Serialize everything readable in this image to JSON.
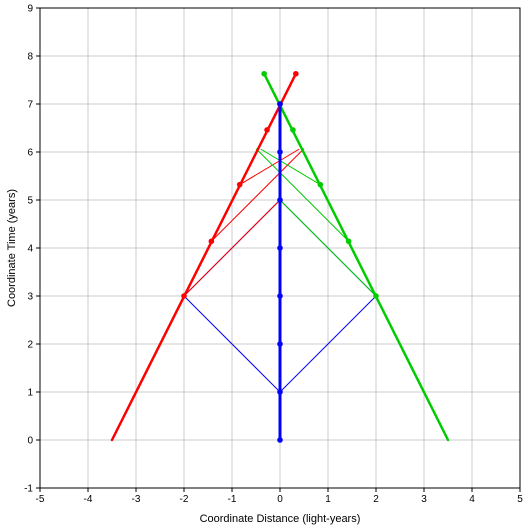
{
  "chart_data": {
    "type": "line",
    "title": "",
    "xlabel": "Coordinate Distance (light-years)",
    "ylabel": "Coordinate Time (years)",
    "xlim": [
      -5,
      5
    ],
    "ylim": [
      -1,
      9
    ],
    "xticks": [
      "-5",
      "-4",
      "-3",
      "-2",
      "-1",
      "0",
      "1",
      "2",
      "3",
      "4",
      "5"
    ],
    "yticks": [
      "-1",
      "0",
      "1",
      "2",
      "3",
      "4",
      "5",
      "6",
      "7",
      "8",
      "9"
    ],
    "grid": true,
    "legend": "none",
    "colors": {
      "red": "#ff0000",
      "green": "#00cc00",
      "blue": "#0000ff",
      "grid": "#cccccc",
      "axis": "#000000"
    },
    "worldlines": [
      {
        "color": "red",
        "width": 2.5,
        "points": [
          [
            -3.5,
            0
          ],
          [
            0.33,
            7.63
          ]
        ]
      },
      {
        "color": "green",
        "width": 2.5,
        "points": [
          [
            3.5,
            0
          ],
          [
            -0.33,
            7.63
          ]
        ]
      },
      {
        "color": "blue",
        "width": 3,
        "points": [
          [
            0,
            0
          ],
          [
            0,
            7
          ]
        ]
      }
    ],
    "signals": [
      {
        "color": "blue",
        "points": [
          [
            0,
            1
          ],
          [
            -2,
            3
          ],
          [
            0,
            5
          ]
        ]
      },
      {
        "color": "blue",
        "points": [
          [
            0,
            1
          ],
          [
            2,
            3
          ],
          [
            0,
            5
          ]
        ]
      },
      {
        "color": "red",
        "points": [
          [
            -2,
            3
          ],
          [
            0,
            5
          ]
        ]
      },
      {
        "color": "red",
        "points": [
          [
            -1.43,
            4.14
          ],
          [
            0.5,
            6.07
          ]
        ]
      },
      {
        "color": "red",
        "points": [
          [
            -0.84,
            5.32
          ],
          [
            0.4,
            6.06
          ]
        ]
      },
      {
        "color": "green",
        "points": [
          [
            2,
            3
          ],
          [
            0,
            5
          ]
        ]
      },
      {
        "color": "green",
        "points": [
          [
            1.43,
            4.14
          ],
          [
            -0.5,
            6.07
          ]
        ]
      },
      {
        "color": "green",
        "points": [
          [
            0.84,
            5.32
          ],
          [
            -0.4,
            6.06
          ]
        ]
      }
    ],
    "markers": [
      {
        "color": "red",
        "points": [
          [
            -2,
            3
          ],
          [
            -1.43,
            4.14
          ],
          [
            -0.84,
            5.32
          ],
          [
            -0.27,
            6.46
          ],
          [
            0,
            7
          ],
          [
            0.33,
            7.63
          ]
        ]
      },
      {
        "color": "green",
        "points": [
          [
            2,
            3
          ],
          [
            1.43,
            4.14
          ],
          [
            0.84,
            5.32
          ],
          [
            0.27,
            6.46
          ],
          [
            0,
            7
          ],
          [
            -0.33,
            7.63
          ]
        ]
      },
      {
        "color": "blue",
        "points": [
          [
            0,
            0
          ],
          [
            0,
            1
          ],
          [
            0,
            2
          ],
          [
            0,
            3
          ],
          [
            0,
            4
          ],
          [
            0,
            5
          ],
          [
            0,
            6
          ],
          [
            0,
            7
          ]
        ]
      }
    ]
  }
}
